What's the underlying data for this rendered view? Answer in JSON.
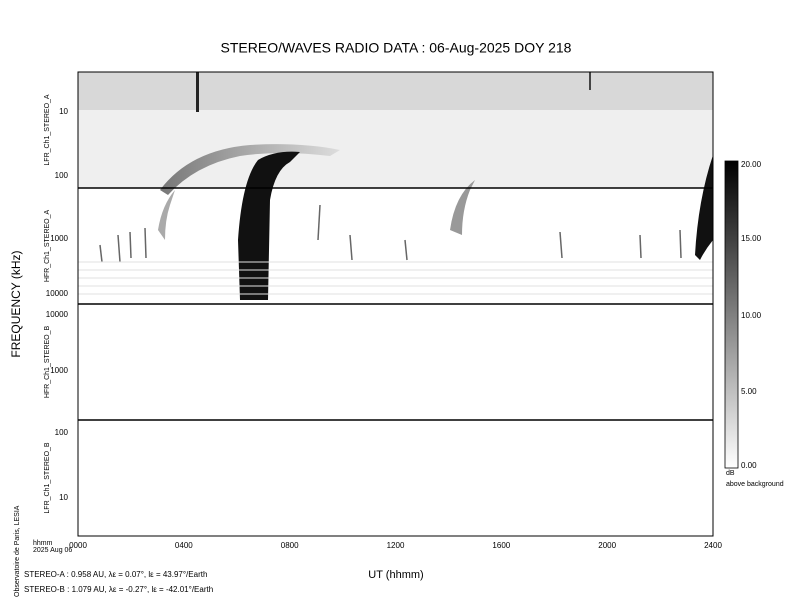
{
  "title": "STEREO/WAVES  RADIO  DATA : 06-Aug-2025  DOY 218",
  "y_axis_label": "FREQUENCY (kHz)",
  "x_axis_label": "UT (hhmm)",
  "x_ticks": [
    "0000",
    "0400",
    "0800",
    "1200",
    "1600",
    "2000",
    "2400"
  ],
  "x_unit_label": "hhmm",
  "date_label": "2025 Aug 06",
  "panels": [
    {
      "label": "LFR_Ch1_STEREO_A",
      "ticks": [
        "10",
        "100"
      ]
    },
    {
      "label": "HFR_Ch1_STEREO_A",
      "ticks": [
        "1000",
        "10000"
      ]
    },
    {
      "label": "HFR_Ch1_STEREO_B",
      "ticks": [
        "10000",
        "1000"
      ]
    },
    {
      "label": "LFR_Ch1_STEREO_B",
      "ticks": [
        "100",
        "10"
      ]
    }
  ],
  "colorbar": {
    "ticks": [
      "20.00",
      "15.00",
      "10.00",
      "5.00",
      "0.00"
    ],
    "unit": "dB",
    "caption": "above background"
  },
  "credit": "Observatoire de Paris, LESIA",
  "footer": [
    "STEREO-A : 0.958 AU, λε = 0.07°, lε = 43.97°/Earth",
    "STEREO-B : 1.079 AU, λε = -0.27°, lε = -42.01°/Earth"
  ]
}
